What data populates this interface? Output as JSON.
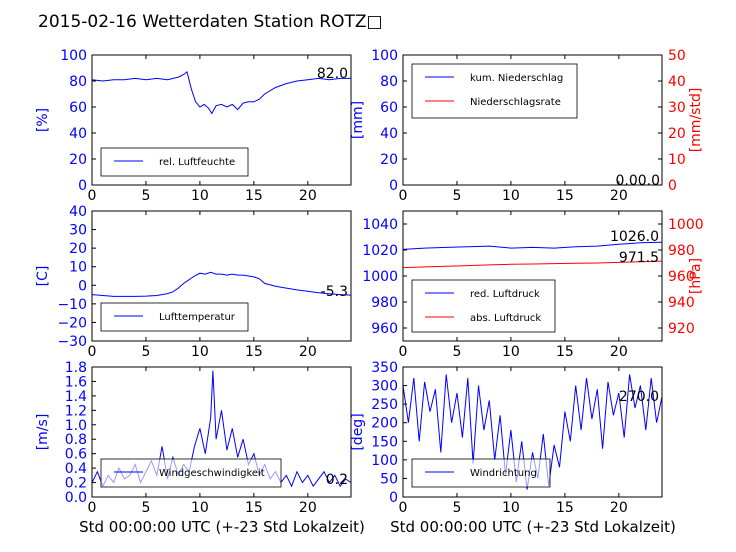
{
  "page_title": "2015-02-16 Wetterdaten Station ROTZ□",
  "x_axis_label": "Std 00:00:00 UTC (+-23 Std Lokalzeit)",
  "chart_data": [
    {
      "id": "humidity",
      "type": "line",
      "xlim": [
        0,
        24
      ],
      "ylim": [
        0,
        100
      ],
      "xticks": [
        "0",
        "5",
        "10",
        "15",
        "20"
      ],
      "yticks": [
        "0",
        "20",
        "40",
        "60",
        "80",
        "100"
      ],
      "ylabel": "[%]",
      "ylabel_color": "#0000ff",
      "latest_value": "82.0",
      "legend": [
        "rel. Luftfeuchte"
      ],
      "legend_position": "lower-left",
      "series": [
        {
          "name": "rel. Luftfeuchte",
          "color": "#0000ff",
          "x": [
            0,
            1,
            2,
            3,
            4,
            5,
            6,
            7,
            8,
            8.5,
            8.8,
            9.2,
            9.6,
            10,
            10.4,
            10.8,
            11.1,
            11.5,
            12,
            12.5,
            13,
            13.5,
            14,
            14.5,
            15,
            15.5,
            16,
            17,
            18,
            19,
            20,
            21,
            22,
            23,
            24
          ],
          "y": [
            81,
            80,
            81,
            81,
            82,
            81,
            82,
            81,
            83,
            85,
            87,
            74,
            64,
            60,
            62,
            59,
            55,
            61,
            62,
            60,
            62,
            58,
            63,
            64,
            64,
            66,
            70,
            75,
            78,
            80,
            81,
            82,
            81,
            82,
            82
          ]
        }
      ],
      "grid": false
    },
    {
      "id": "precipitation",
      "type": "line",
      "xlim": [
        0,
        24
      ],
      "ylim": [
        0,
        100
      ],
      "y2lim": [
        0,
        50
      ],
      "xticks": [
        "0",
        "5",
        "10",
        "15",
        "20"
      ],
      "yticks": [
        "0",
        "20",
        "40",
        "60",
        "80",
        "100"
      ],
      "y2ticks": [
        "0",
        "10",
        "20",
        "30",
        "40",
        "50"
      ],
      "ylabel": "[mm]",
      "y2label": "[mm/std]",
      "ylabel_color": "#0000ff",
      "y2label_color": "#ff0000",
      "latest_value": "0.00.0",
      "legend": [
        "kum. Niederschlag",
        "Niederschlagsrate"
      ],
      "legend_position": "upper-left",
      "series": [
        {
          "name": "kum. Niederschlag",
          "color": "#0000ff",
          "axis": "left",
          "x": [
            0,
            24
          ],
          "y": [
            0,
            0
          ]
        },
        {
          "name": "Niederschlagsrate",
          "color": "#ff0000",
          "axis": "right",
          "x": [
            0,
            24
          ],
          "y": [
            0,
            0
          ]
        }
      ],
      "grid": false
    },
    {
      "id": "temperature",
      "type": "line",
      "xlim": [
        0,
        24
      ],
      "ylim": [
        -30,
        40
      ],
      "xticks": [
        "0",
        "5",
        "10",
        "15",
        "20"
      ],
      "yticks": [
        "−30",
        "−20",
        "−10",
        "0",
        "10",
        "20",
        "30",
        "40"
      ],
      "ylabel": "[C]",
      "ylabel_color": "#0000ff",
      "latest_value": "-5.3",
      "legend": [
        "Lufttemperatur"
      ],
      "legend_position": "lower-left",
      "series": [
        {
          "name": "Lufttemperatur",
          "color": "#0000ff",
          "x": [
            0,
            1,
            2,
            3,
            4,
            5,
            6,
            7,
            7.5,
            8,
            8.5,
            9,
            9.5,
            10,
            10.5,
            11,
            11.5,
            12,
            12.5,
            13,
            13.5,
            14,
            14.5,
            15,
            15.5,
            16,
            17,
            18,
            19,
            20,
            21,
            22,
            23,
            24
          ],
          "y": [
            -5,
            -5.5,
            -6,
            -6,
            -6,
            -5.8,
            -5.5,
            -4.5,
            -3.5,
            -1.5,
            1,
            3,
            5,
            6.5,
            6,
            7,
            6,
            6,
            5.5,
            6,
            5.5,
            5.5,
            5,
            4.5,
            3.5,
            1,
            -0.5,
            -1.5,
            -2.5,
            -3.2,
            -4,
            -4.6,
            -5,
            -5.3
          ]
        }
      ],
      "grid": false
    },
    {
      "id": "pressure",
      "type": "line",
      "xlim": [
        0,
        24
      ],
      "ylim": [
        950,
        1050
      ],
      "y2lim": [
        910,
        1010
      ],
      "xticks": [
        "0",
        "5",
        "10",
        "15",
        "20"
      ],
      "yticks": [
        "960",
        "980",
        "1000",
        "1020",
        "1040"
      ],
      "y2ticks": [
        "920",
        "940",
        "960",
        "980",
        "1000"
      ],
      "ylabel": "",
      "y2label": "[hPa]",
      "ylabel_color": "#0000ff",
      "y2label_color": "#ff0000",
      "latest_values": [
        "1026.0",
        "971.5"
      ],
      "legend": [
        "red. Luftdruck",
        "abs. Luftdruck"
      ],
      "legend_position": "lower-left",
      "series": [
        {
          "name": "red. Luftdruck",
          "color": "#0000ff",
          "axis": "left",
          "x": [
            0,
            2,
            4,
            6,
            8,
            10,
            12,
            14,
            16,
            18,
            20,
            22,
            24
          ],
          "y": [
            1020.5,
            1021.5,
            1022,
            1022.5,
            1023,
            1021.5,
            1022,
            1021.5,
            1022.5,
            1023,
            1024.5,
            1025.5,
            1026
          ]
        },
        {
          "name": "abs. Luftdruck",
          "color": "#ff0000",
          "axis": "right",
          "x": [
            0,
            2,
            4,
            6,
            8,
            10,
            12,
            14,
            16,
            18,
            20,
            22,
            24
          ],
          "y": [
            966.5,
            967,
            967.5,
            968,
            968.5,
            969,
            969.2,
            969.5,
            969.8,
            970,
            970.5,
            971,
            971.5
          ]
        }
      ],
      "grid": false
    },
    {
      "id": "wind_speed",
      "type": "line",
      "xlim": [
        0,
        24
      ],
      "ylim": [
        0,
        1.8
      ],
      "xticks": [
        "0",
        "5",
        "10",
        "15",
        "20"
      ],
      "yticks": [
        "0.0",
        "0.2",
        "0.4",
        "0.6",
        "0.8",
        "1.0",
        "1.2",
        "1.4",
        "1.6",
        "1.8"
      ],
      "ylabel": "[m/s]",
      "ylabel_color": "#0000ff",
      "latest_value": "0.2",
      "legend": [
        "Windgeschwindigkeit"
      ],
      "legend_position": "lower-left",
      "series": [
        {
          "name": "Windgeschwindigkeit",
          "color": "#0000ff",
          "x": [
            0,
            0.5,
            1,
            1.5,
            2,
            2.5,
            3,
            3.5,
            4,
            4.5,
            5,
            5.5,
            6,
            6.5,
            7,
            7.5,
            8,
            8.5,
            9,
            9.5,
            10,
            10.5,
            11,
            11.2,
            11.5,
            12,
            12.5,
            13,
            13.5,
            14,
            14.5,
            15,
            15.5,
            16,
            16.5,
            17,
            17.5,
            18,
            18.5,
            19,
            19.5,
            20,
            20.5,
            21,
            21.5,
            22,
            22.5,
            23,
            23.5,
            24
          ],
          "y": [
            0.2,
            0.35,
            0.15,
            0.3,
            0.2,
            0.4,
            0.25,
            0.3,
            0.45,
            0.2,
            0.35,
            0.5,
            0.3,
            0.7,
            0.25,
            0.55,
            0.3,
            0.45,
            0.35,
            0.7,
            0.95,
            0.6,
            1.1,
            1.75,
            0.8,
            1.2,
            0.65,
            0.95,
            0.55,
            0.8,
            0.45,
            0.6,
            0.3,
            0.45,
            0.25,
            0.35,
            0.2,
            0.3,
            0.15,
            0.35,
            0.2,
            0.3,
            0.15,
            0.25,
            0.35,
            0.2,
            0.3,
            0.15,
            0.25,
            0.2
          ]
        }
      ],
      "grid": false
    },
    {
      "id": "wind_direction",
      "type": "line",
      "xlim": [
        0,
        24
      ],
      "ylim": [
        0,
        350
      ],
      "xticks": [
        "0",
        "5",
        "10",
        "15",
        "20"
      ],
      "yticks": [
        "0",
        "50",
        "100",
        "150",
        "200",
        "250",
        "300",
        "350"
      ],
      "ylabel": "[deg]",
      "ylabel_color": "#0000ff",
      "latest_value": "270.0",
      "legend": [
        "Windrichtung"
      ],
      "legend_position": "lower-left",
      "series": [
        {
          "name": "Windrichtung",
          "color": "#0000ff",
          "x": [
            0,
            0.5,
            1,
            1.5,
            2,
            2.5,
            3,
            3.5,
            4,
            4.5,
            5,
            5.5,
            6,
            6.5,
            7,
            7.5,
            8,
            8.5,
            9,
            9.5,
            10,
            10.5,
            11,
            11.5,
            12,
            12.5,
            13,
            13.5,
            14,
            14.5,
            15,
            15.5,
            16,
            16.5,
            17,
            17.5,
            18,
            18.5,
            19,
            19.5,
            20,
            20.5,
            21,
            21.5,
            22,
            22.5,
            23,
            23.5,
            24
          ],
          "y": [
            300,
            200,
            320,
            150,
            310,
            230,
            290,
            120,
            330,
            200,
            280,
            160,
            320,
            90,
            300,
            180,
            260,
            100,
            220,
            60,
            180,
            40,
            150,
            20,
            120,
            50,
            170,
            30,
            140,
            80,
            230,
            150,
            300,
            180,
            320,
            210,
            290,
            130,
            310,
            220,
            280,
            160,
            330,
            240,
            300,
            180,
            320,
            200,
            270
          ]
        }
      ],
      "grid": false
    }
  ]
}
